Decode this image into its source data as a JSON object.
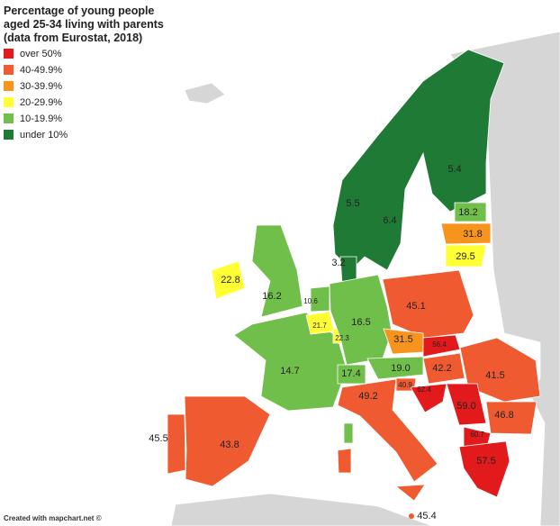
{
  "title": [
    "Percentage of young people",
    "aged 25-34 living with parents",
    "(data from Eurostat, 2018)"
  ],
  "legend": [
    "over 50%",
    "40-49.9%",
    "30-39.9%",
    "20-29.9%",
    "10-19.9%",
    "under 10%"
  ],
  "regions": [
    "5.4",
    "5.5",
    "6.4",
    "18.2",
    "31.8",
    "29.5",
    "3.2",
    "22.8",
    "16.2",
    "10.6",
    "45.1",
    "16.5",
    "21.7",
    "22.3",
    "31.5",
    "56.4",
    "14.7",
    "17.4",
    "19.0",
    "42.2",
    "41.5",
    "40.9",
    "62.4",
    "49.2",
    "59.0",
    "46.8",
    "45.5",
    "43.8",
    "60.7",
    "57.5",
    "45.4"
  ],
  "footer": "Created with mapchart.net ©"
}
